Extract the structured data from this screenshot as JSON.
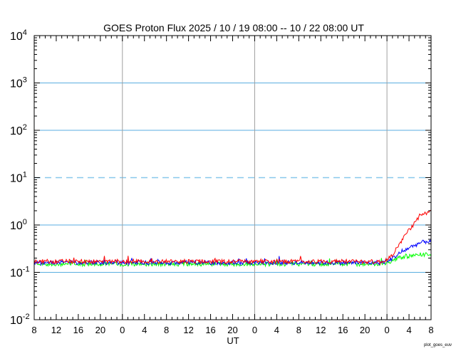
{
  "chart_data": {
    "type": "line",
    "title": "GOES Proton Flux   2025 / 10 / 19   08:00 -- 10 / 22   08:00   UT",
    "xlabel": "UT",
    "ylabel": "",
    "x_unit": "hours since 2025-10-19 08:00 UT",
    "xlim": [
      0,
      72
    ],
    "yscale": "log",
    "ylim": [
      0.01,
      10000
    ],
    "y_ticks": [
      {
        "base": "10",
        "exp": "4",
        "value": 10000
      },
      {
        "base": "10",
        "exp": "3",
        "value": 1000
      },
      {
        "base": "10",
        "exp": "2",
        "value": 100
      },
      {
        "base": "10",
        "exp": "1",
        "value": 10
      },
      {
        "base": "10",
        "exp": "0",
        "value": 1
      },
      {
        "base": "10",
        "exp": "-1",
        "value": 0.1
      },
      {
        "base": "10",
        "exp": "-2",
        "value": 0.01
      }
    ],
    "x_tick_labels": [
      "8",
      "12",
      "16",
      "20",
      "0",
      "4",
      "8",
      "12",
      "16",
      "20",
      "0",
      "4",
      "8",
      "12",
      "16",
      "20",
      "0",
      "4",
      "8"
    ],
    "day_boundaries_hours": [
      16,
      40,
      64
    ],
    "threshold_line": {
      "value": 10,
      "style": "dashed",
      "color": "#88c8ec"
    },
    "grid_color": "#5aaee0",
    "day_line_color": "#a0a0a0",
    "series": [
      {
        "color": "#ff0000",
        "points": [
          [
            0,
            0.17
          ],
          [
            6,
            0.17
          ],
          [
            12,
            0.17
          ],
          [
            18,
            0.17
          ],
          [
            24,
            0.17
          ],
          [
            30,
            0.17
          ],
          [
            36,
            0.17
          ],
          [
            42,
            0.17
          ],
          [
            48,
            0.17
          ],
          [
            54,
            0.17
          ],
          [
            60,
            0.17
          ],
          [
            63,
            0.165
          ],
          [
            64.5,
            0.2
          ],
          [
            66,
            0.35
          ],
          [
            68,
            0.8
          ],
          [
            70,
            1.5
          ],
          [
            72,
            2.0
          ]
        ]
      },
      {
        "color": "#0000ff",
        "points": [
          [
            0,
            0.16
          ],
          [
            6,
            0.16
          ],
          [
            12,
            0.16
          ],
          [
            18,
            0.16
          ],
          [
            24,
            0.16
          ],
          [
            30,
            0.16
          ],
          [
            36,
            0.16
          ],
          [
            42,
            0.16
          ],
          [
            48,
            0.16
          ],
          [
            54,
            0.16
          ],
          [
            60,
            0.16
          ],
          [
            63,
            0.16
          ],
          [
            64.5,
            0.18
          ],
          [
            66,
            0.24
          ],
          [
            68,
            0.33
          ],
          [
            70,
            0.42
          ],
          [
            72,
            0.47
          ]
        ]
      },
      {
        "color": "#00ff00",
        "points": [
          [
            0,
            0.15
          ],
          [
            6,
            0.15
          ],
          [
            12,
            0.15
          ],
          [
            18,
            0.15
          ],
          [
            24,
            0.15
          ],
          [
            30,
            0.15
          ],
          [
            36,
            0.15
          ],
          [
            42,
            0.15
          ],
          [
            48,
            0.15
          ],
          [
            54,
            0.15
          ],
          [
            60,
            0.15
          ],
          [
            63,
            0.15
          ],
          [
            64.5,
            0.17
          ],
          [
            66,
            0.2
          ],
          [
            68,
            0.22
          ],
          [
            70,
            0.24
          ],
          [
            72,
            0.24
          ]
        ]
      }
    ],
    "credit": "plot_goes_euv"
  }
}
